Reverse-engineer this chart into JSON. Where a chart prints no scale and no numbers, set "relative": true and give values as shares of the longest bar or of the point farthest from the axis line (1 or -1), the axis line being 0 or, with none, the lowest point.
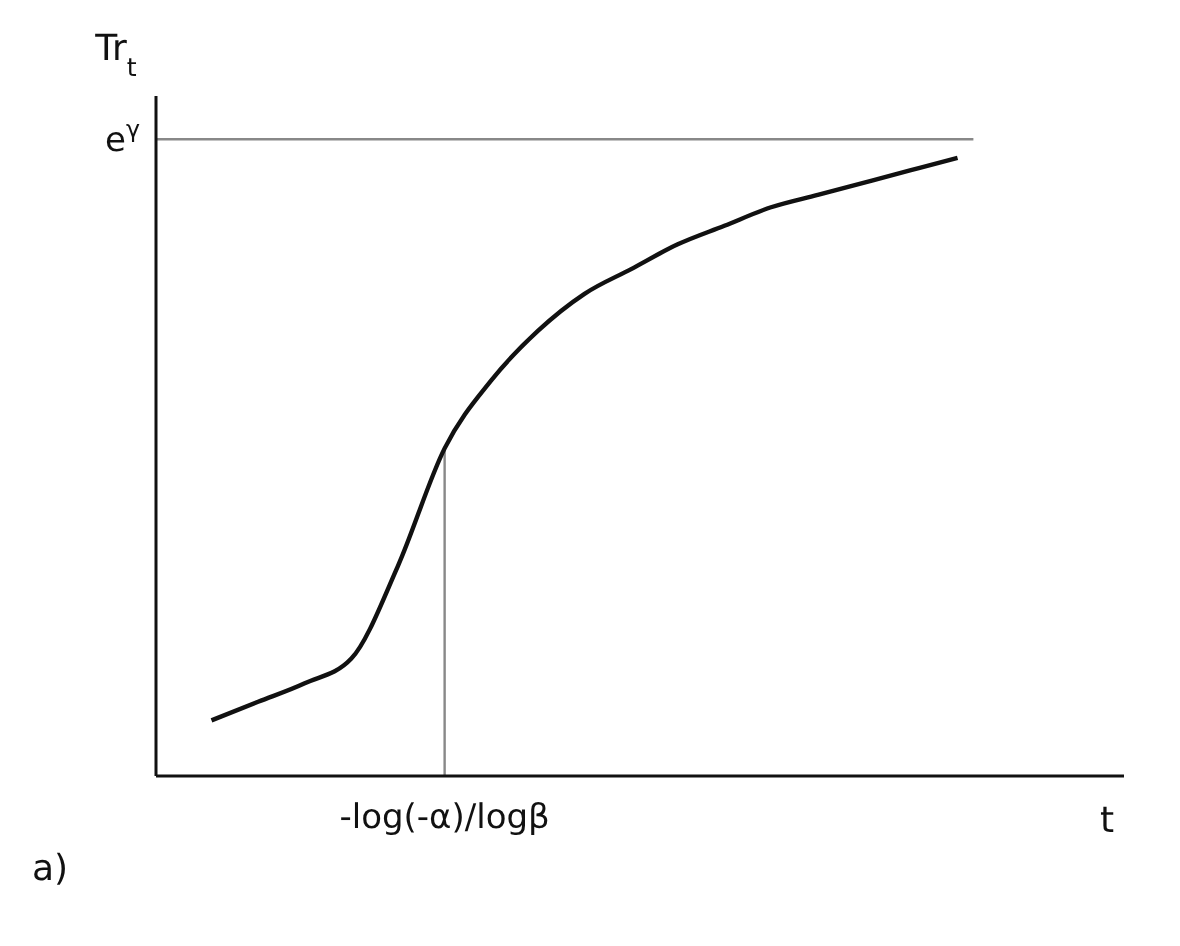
{
  "chart_data": {
    "type": "line",
    "relative": true,
    "xlabel": "t",
    "ylabel": "Tr$_{t}$",
    "categories": [
      null,
      null,
      null,
      null,
      null,
      null,
      null,
      null,
      null,
      null,
      null,
      null,
      null,
      null,
      null,
      null,
      null
    ],
    "series": [
      {
        "color": "#111111",
        "values": [
          0.09,
          0.12,
          0.15,
          0.19,
          0.34,
          0.53,
          0.64,
          0.72,
          0.78,
          0.82,
          0.86,
          0.89,
          0.92,
          0.94,
          0.96,
          0.98,
          1.0
        ]
      }
    ],
    "ref_lines": [
      {
        "axis": "y",
        "value": 1.03,
        "label": "e$^{γ}$",
        "color": "#888888"
      }
    ],
    "annotations": [
      {
        "text": "-log(-α)/logβ",
        "y": 0.53
      },
      "a)"
    ],
    "marker": "none",
    "line_style": "solid"
  }
}
